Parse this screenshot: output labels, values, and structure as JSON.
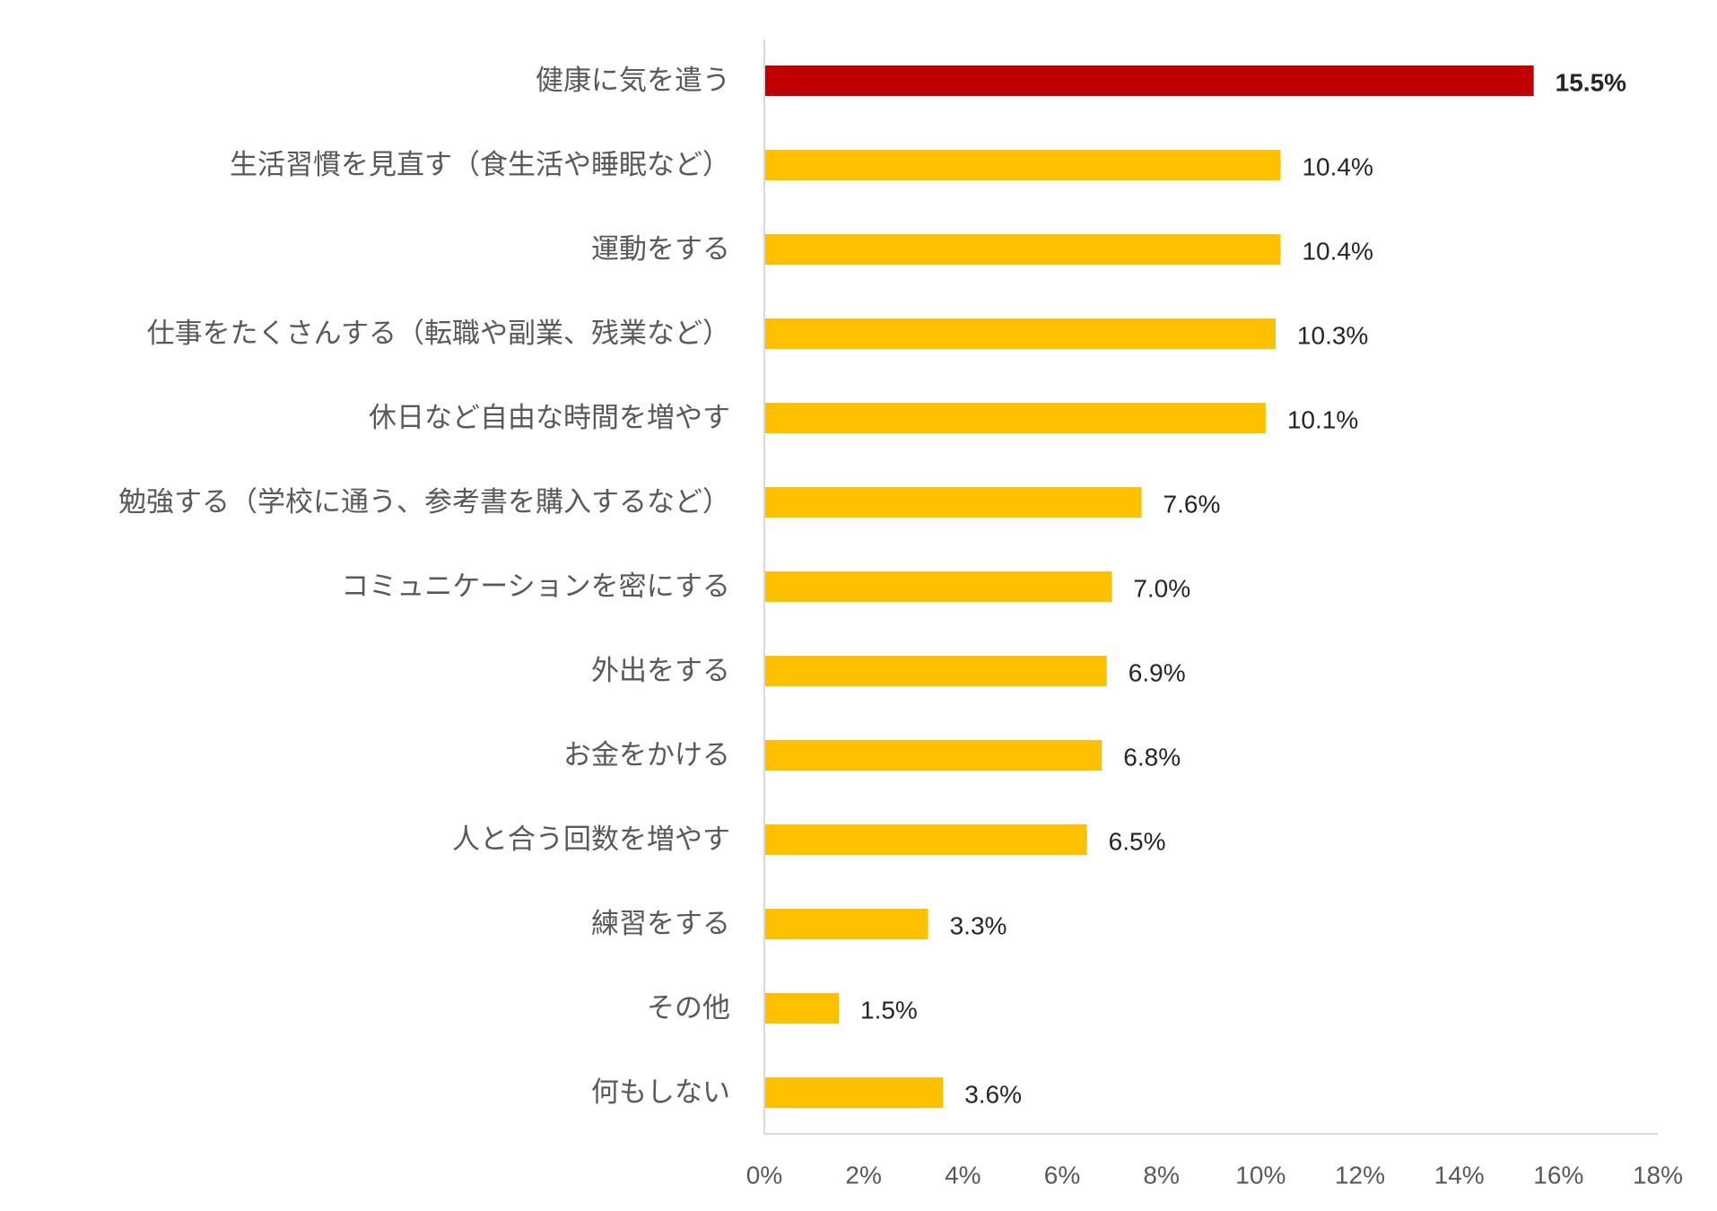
{
  "chart_data": {
    "type": "bar",
    "orientation": "horizontal",
    "categories": [
      "健康に気を遣う",
      "生活習慣を見直す（食生活や睡眠など）",
      "運動をする",
      "仕事をたくさんする（転職や副業、残業など）",
      "休日など自由な時間を増やす",
      "勉強する（学校に通う、参考書を購入するなど）",
      "コミュニケーションを密にする",
      "外出をする",
      "お金をかける",
      "人と合う回数を増やす",
      "練習をする",
      "その他",
      "何もしない"
    ],
    "values": [
      15.5,
      10.4,
      10.4,
      10.3,
      10.1,
      7.6,
      7.0,
      6.9,
      6.8,
      6.5,
      3.3,
      1.5,
      3.6
    ],
    "value_labels": [
      "15.5%",
      "10.4%",
      "10.4%",
      "10.3%",
      "10.1%",
      "7.6%",
      "7.0%",
      "6.9%",
      "6.8%",
      "6.5%",
      "3.3%",
      "1.5%",
      "3.6%"
    ],
    "highlight_index": 0,
    "xlim": [
      0,
      18
    ],
    "x_ticks": [
      0,
      2,
      4,
      6,
      8,
      10,
      12,
      14,
      16,
      18
    ],
    "x_tick_labels": [
      "0%",
      "2%",
      "4%",
      "6%",
      "8%",
      "10%",
      "12%",
      "14%",
      "16%",
      "18%"
    ],
    "title": "",
    "xlabel": "",
    "ylabel": "",
    "grid": false,
    "colors": {
      "highlight": "#C00000",
      "default": "#FFC000",
      "axis": "#D9D9D9"
    }
  }
}
